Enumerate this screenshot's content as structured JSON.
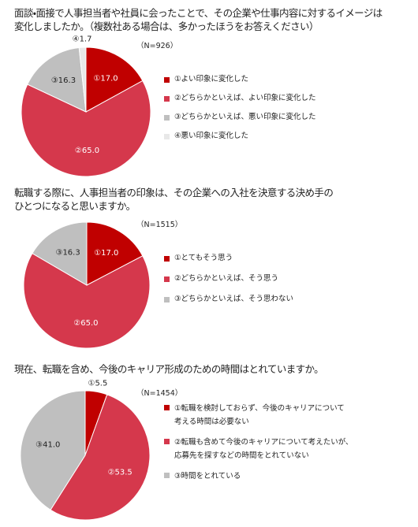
{
  "chart_data": [
    {
      "type": "pie",
      "title": "面談・面接で人事担当者や社員に会ったことで、その企業や仕事内容に対するイメージは\n変化しましたか。（複数社ある場合は、多かったほうをお答えください）",
      "subtitle": "（N=926）",
      "categories": [
        "①よい印象に変化した",
        "②どちらかといえば、よい印象に変化した",
        "③どちらかといえば、悪い印象に変化した",
        "④悪い印象に変化した"
      ],
      "values": [
        17.0,
        65.0,
        16.3,
        1.7
      ],
      "value_labels": [
        "①17.0",
        "②65.0",
        "③16.3",
        "④1.7"
      ],
      "colors": [
        "#c00000",
        "#d5384c",
        "#bfbfbf",
        "#e8e8e8"
      ]
    },
    {
      "type": "pie",
      "title": "転職する際に、人事担当者の印象は、その企業への入社を決意する決め手の\nひとつになると思いますか。",
      "subtitle": "（N=1515）",
      "categories": [
        "①とてもそう思う",
        "②どちらかといえば、そう思う",
        "③どちらかといえば、そう思わない"
      ],
      "values": [
        17.0,
        65.0,
        16.3
      ],
      "value_labels": [
        "①17.0",
        "②65.0",
        "③16.3"
      ],
      "colors": [
        "#c00000",
        "#d5384c",
        "#bfbfbf"
      ]
    },
    {
      "type": "pie",
      "title": "現在、転職を含め、今後のキャリア形成のための時間はとれていますか。",
      "subtitle": "（N=1454）",
      "categories": [
        "①転職を検討しておらず、今後のキャリアについて\n考える時間は必要ない",
        "②転職も含めて今後のキャリアについて考えたいが、\n応募先を探すなどの時間をとれていない",
        "③時間をとれている"
      ],
      "values": [
        5.5,
        53.5,
        41.0
      ],
      "value_labels": [
        "①5.5",
        "②53.5",
        "③41.0"
      ],
      "colors": [
        "#c00000",
        "#d5384c",
        "#bfbfbf"
      ]
    }
  ]
}
